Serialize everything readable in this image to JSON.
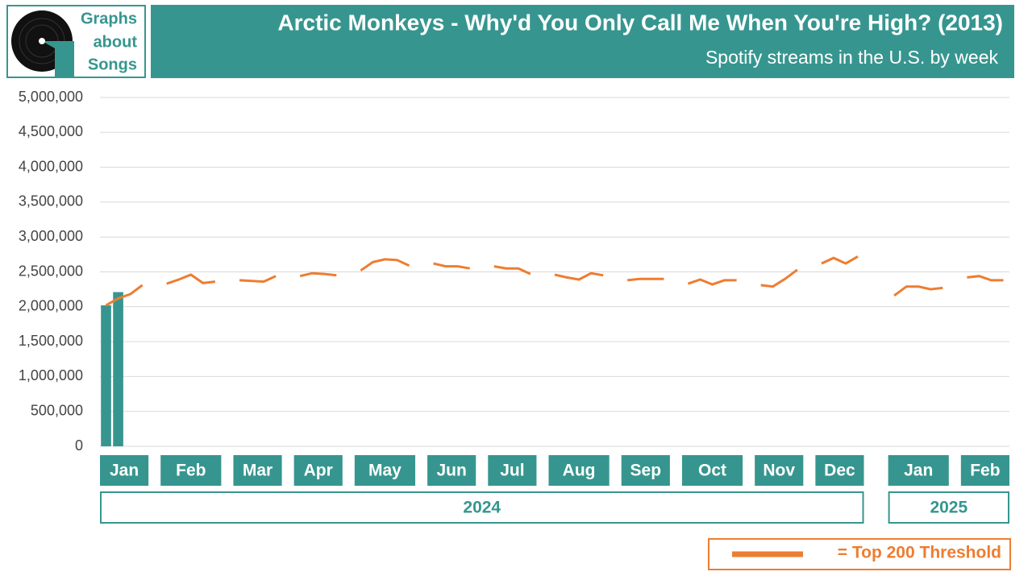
{
  "logo": [
    "Graphs",
    "about",
    "Songs"
  ],
  "chart_data": {
    "type": "bar_line",
    "title": "Arctic Monkeys - Why'd You Only Call Me When You're High? (2013)",
    "subtitle": "Spotify streams in the U.S. by week",
    "bar_color": "#36968f",
    "threshold_color": "#ed7d31",
    "threshold_name": "= Top 200 Threshold",
    "grid": true,
    "ylim": [
      0,
      5000000
    ],
    "yticks": [
      0,
      {
        "value": 500000,
        "label": "500,000"
      },
      {
        "value": 1000000,
        "label": "1,000,000"
      },
      {
        "value": 1500000,
        "label": "1,500,000"
      },
      {
        "value": 2000000,
        "label": "2,000,000"
      },
      {
        "value": 2500000,
        "label": "2,500,000"
      },
      {
        "value": 3000000,
        "label": "3,000,000"
      },
      {
        "value": 3500000,
        "label": "3,500,000"
      },
      {
        "value": 4000000,
        "label": "4,000,000"
      },
      {
        "value": 4500000,
        "label": "4,500,000"
      },
      {
        "value": 5000000,
        "label": "5,000,000"
      }
    ],
    "years": [
      {
        "name": "2024",
        "months": [
          {
            "name": "Jan",
            "streams": [
              2020000,
              2210000,
              null,
              null
            ],
            "threshold": [
              2020000,
              2120000,
              2180000,
              2310000
            ]
          },
          {
            "name": "Feb",
            "streams": [
              null,
              null,
              null,
              null,
              null
            ],
            "threshold": [
              2330000,
              2390000,
              2460000,
              2340000,
              2360000
            ]
          },
          {
            "name": "Mar",
            "streams": [
              null,
              null,
              null,
              null
            ],
            "threshold": [
              2380000,
              2370000,
              2360000,
              2440000
            ]
          },
          {
            "name": "Apr",
            "streams": [
              null,
              null,
              null,
              null
            ],
            "threshold": [
              2440000,
              2480000,
              2470000,
              2450000
            ]
          },
          {
            "name": "May",
            "streams": [
              null,
              null,
              null,
              null,
              null
            ],
            "threshold": [
              2520000,
              2640000,
              2680000,
              2670000,
              2590000
            ]
          },
          {
            "name": "Jun",
            "streams": [
              null,
              null,
              null,
              null
            ],
            "threshold": [
              2620000,
              2580000,
              2580000,
              2550000
            ]
          },
          {
            "name": "Jul",
            "streams": [
              null,
              null,
              null,
              null
            ],
            "threshold": [
              2580000,
              2550000,
              2550000,
              2470000
            ]
          },
          {
            "name": "Aug",
            "streams": [
              null,
              null,
              null,
              null,
              null
            ],
            "threshold": [
              2460000,
              2420000,
              2390000,
              2480000,
              2450000
            ]
          },
          {
            "name": "Sep",
            "streams": [
              null,
              null,
              null,
              null
            ],
            "threshold": [
              2380000,
              2400000,
              2400000,
              2400000
            ]
          },
          {
            "name": "Oct",
            "streams": [
              null,
              null,
              null,
              null,
              null
            ],
            "threshold": [
              2330000,
              2390000,
              2320000,
              2380000,
              2380000
            ]
          },
          {
            "name": "Nov",
            "streams": [
              null,
              null,
              null,
              null
            ],
            "threshold": [
              2310000,
              2290000,
              2400000,
              2530000
            ]
          },
          {
            "name": "Dec",
            "streams": [
              null,
              null,
              null,
              null
            ],
            "threshold": [
              2620000,
              2700000,
              2620000,
              2720000
            ]
          }
        ]
      },
      {
        "name": "2025",
        "months": [
          {
            "name": "Jan",
            "streams": [
              null,
              null,
              null,
              null,
              null
            ],
            "threshold": [
              2160000,
              2290000,
              2290000,
              2250000,
              2270000
            ]
          },
          {
            "name": "Feb",
            "streams": [
              null,
              null,
              null,
              null
            ],
            "threshold": [
              2420000,
              2440000,
              2380000,
              2380000
            ]
          }
        ]
      }
    ]
  }
}
